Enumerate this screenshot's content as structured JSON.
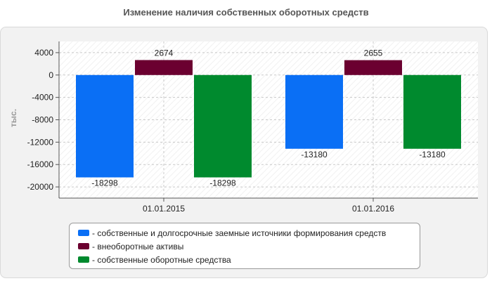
{
  "chart_data": {
    "type": "bar",
    "title": "Изменение наличия собственных оборотных средств",
    "ylabel": "тыс.",
    "xlabel": "",
    "categories": [
      "01.01.2015",
      "01.01.2016"
    ],
    "ylim": [
      -22000,
      6000
    ],
    "yticks": [
      4000,
      0,
      -4000,
      -8000,
      -12000,
      -16000,
      -20000
    ],
    "grid": true,
    "legend_position": "bottom",
    "series": [
      {
        "name": "- собственные и долгосрочные заемные источники формирования средств",
        "values": [
          -18298,
          -13180
        ],
        "color": "#0a6ff5",
        "label_side": "below"
      },
      {
        "name": "- внеоборотные активы",
        "values": [
          2674,
          2655
        ],
        "color": "#6b0030",
        "label_side": "above"
      },
      {
        "name": "- собственные оборотные средства",
        "values": [
          -18298,
          -13180
        ],
        "color": "#008a2e",
        "label_side": "below"
      }
    ]
  }
}
